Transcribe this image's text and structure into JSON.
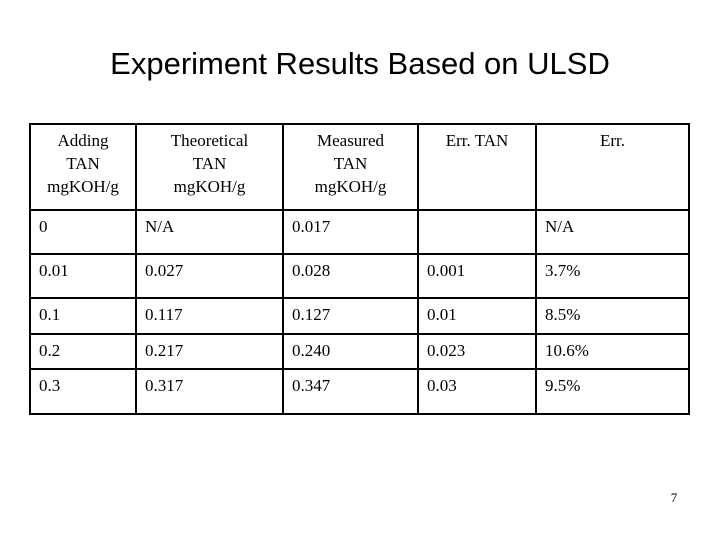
{
  "slide": {
    "title": "Experiment Results Based on ULSD",
    "page_number": "7"
  },
  "table": {
    "header": [
      [
        "Adding",
        "TAN",
        "mgKOH/g"
      ],
      [
        "Theoretical",
        "TAN",
        "mgKOH/g"
      ],
      [
        "Measured",
        "TAN",
        "mgKOH/g"
      ],
      [
        "Err. TAN"
      ],
      [
        "Err."
      ]
    ],
    "rows": [
      [
        "0",
        "N/A",
        "0.017",
        "",
        "N/A"
      ],
      [
        "0.01",
        "0.027",
        "0.028",
        "0.001",
        "3.7%"
      ],
      [
        "0.1",
        "0.117",
        "0.127",
        "0.01",
        "8.5%"
      ],
      [
        "0.2",
        "0.217",
        "0.240",
        "0.023",
        "10.6%"
      ],
      [
        "0.3",
        "0.317",
        "0.347",
        "0.03",
        "9.5%"
      ]
    ]
  }
}
